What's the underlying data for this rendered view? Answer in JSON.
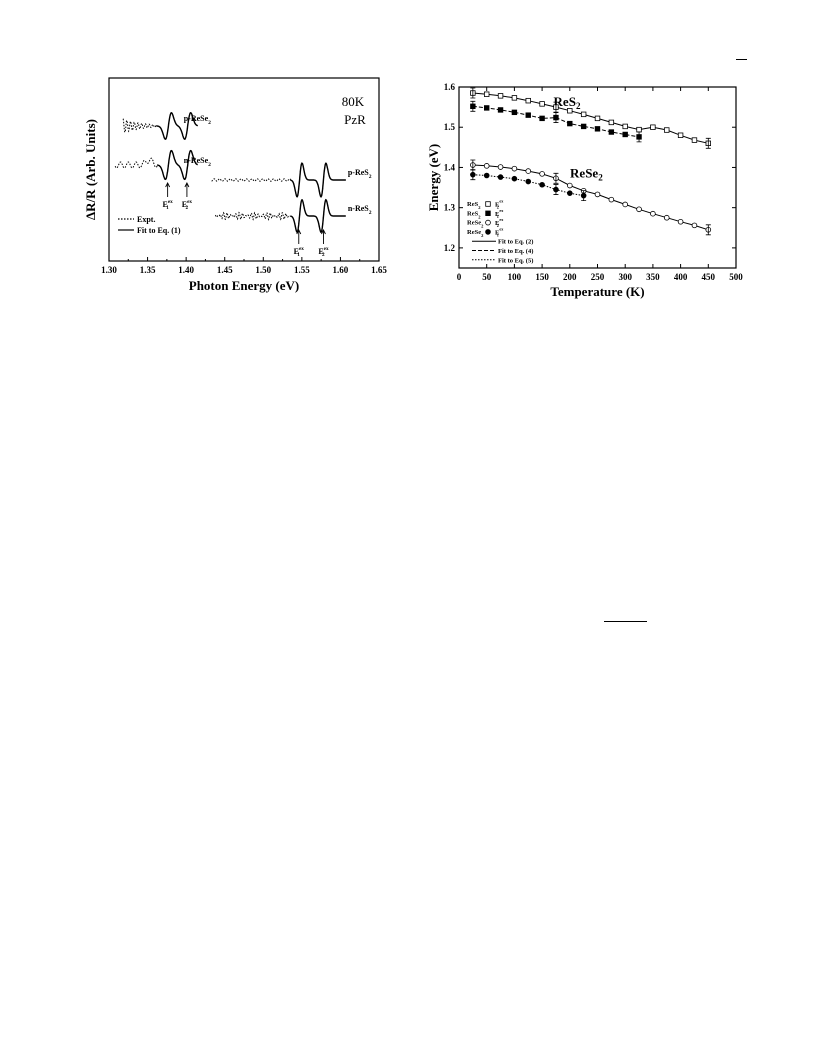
{
  "chart_data": [
    {
      "type": "line",
      "xlabel": "Photon Energy (eV)",
      "ylabel": "ΔR/R (Arb. Units)",
      "xlim": [
        1.3,
        1.65
      ],
      "xticks": [
        "1.30",
        "1.35",
        "1.40",
        "1.45",
        "1.50",
        "1.55",
        "1.60",
        "1.65"
      ],
      "annotation_temp": "80K",
      "annotation_method": "PzR",
      "traces": [
        {
          "label": "p-ReSe",
          "sub": "2",
          "peaks": [
            1.377,
            1.402
          ],
          "x_range": [
            1.318,
            1.415
          ]
        },
        {
          "label": "n-ReSe",
          "sub": "2",
          "peaks": [
            1.377,
            1.402
          ],
          "x_range": [
            1.308,
            1.415
          ]
        },
        {
          "label": "p-ReS",
          "sub": "2",
          "peaks": [
            1.547,
            1.578
          ],
          "x_range": [
            1.433,
            1.607
          ]
        },
        {
          "label": "n-ReS",
          "sub": "2",
          "peaks": [
            1.547,
            1.578
          ],
          "x_range": [
            1.438,
            1.607
          ]
        }
      ],
      "arrows": [
        {
          "label": "E",
          "sub": "1",
          "sup": "ex",
          "x": 1.376
        },
        {
          "label": "E",
          "sub": "2",
          "sup": "ex",
          "x": 1.401
        },
        {
          "label": "E",
          "sub": "1",
          "sup": "ex",
          "x": 1.546
        },
        {
          "label": "E",
          "sub": "2",
          "sup": "ex",
          "x": 1.578
        }
      ],
      "legend": [
        {
          "label": "Expt.",
          "style": "dotted"
        },
        {
          "label": "Fit to Eq. (1)",
          "style": "solid"
        }
      ],
      "legend_position": "bottom-left"
    },
    {
      "type": "scatter",
      "xlabel": "Temperature (K)",
      "ylabel": "Energy (eV)",
      "xlim": [
        0,
        500
      ],
      "ylim": [
        1.15,
        1.6
      ],
      "xticks": [
        "0",
        "50",
        "100",
        "150",
        "200",
        "250",
        "300",
        "350",
        "400",
        "450",
        "500"
      ],
      "yticks": [
        "1.2",
        "1.3",
        "1.4",
        "1.5",
        "1.6"
      ],
      "group_labels": [
        {
          "text": "ReS",
          "sub": "2"
        },
        {
          "text": "ReSe",
          "sub": "2"
        }
      ],
      "series": [
        {
          "name": "ReS2 E2ex",
          "material": "ReS",
          "sub": "2",
          "marker": "open-square",
          "fit": "solid",
          "x": [
            25,
            50,
            75,
            100,
            125,
            150,
            175,
            200,
            225,
            250,
            275,
            300,
            325,
            350,
            375,
            400,
            425,
            450
          ],
          "y": [
            1.585,
            1.582,
            1.578,
            1.573,
            1.566,
            1.558,
            1.55,
            1.541,
            1.532,
            1.522,
            1.512,
            1.502,
            1.494,
            1.5,
            1.493,
            1.48,
            1.468,
            1.46
          ]
        },
        {
          "name": "ReS2 E1ex",
          "material": "ReS",
          "sub": "2",
          "marker": "filled-square",
          "fit": "dashed",
          "x": [
            25,
            50,
            75,
            100,
            125,
            150,
            175,
            200,
            225,
            250,
            275,
            300,
            325
          ],
          "y": [
            1.552,
            1.548,
            1.543,
            1.537,
            1.53,
            1.522,
            1.524,
            1.509,
            1.502,
            1.496,
            1.488,
            1.482,
            1.476
          ]
        },
        {
          "name": "ReSe2 E2ex",
          "material": "ReSe",
          "sub": "2",
          "marker": "open-circle",
          "fit": "solid",
          "x": [
            25,
            50,
            75,
            100,
            125,
            150,
            175,
            200,
            225,
            250,
            275,
            300,
            325,
            350,
            375,
            400,
            425,
            450
          ],
          "y": [
            1.406,
            1.404,
            1.401,
            1.397,
            1.391,
            1.384,
            1.373,
            1.355,
            1.342,
            1.333,
            1.32,
            1.308,
            1.296,
            1.285,
            1.275,
            1.265,
            1.256,
            1.245
          ]
        },
        {
          "name": "ReSe2 E1ex",
          "material": "ReSe",
          "sub": "2",
          "marker": "filled-circle",
          "fit": "dotted",
          "x": [
            25,
            50,
            75,
            100,
            125,
            150,
            175,
            200,
            225
          ],
          "y": [
            1.382,
            1.38,
            1.376,
            1.372,
            1.365,
            1.357,
            1.345,
            1.336,
            1.33
          ]
        }
      ],
      "legend": [
        {
          "material": "ReS",
          "sub": "2",
          "marker": "open-square",
          "symbol": "E",
          "ssub": "2",
          "ssup": "ex"
        },
        {
          "material": "ReS",
          "sub": "2",
          "marker": "filled-square",
          "symbol": "E",
          "ssub": "1",
          "ssup": "ex"
        },
        {
          "material": "ReSe",
          "sub": "2",
          "marker": "open-circle",
          "symbol": "E",
          "ssub": "2",
          "ssup": "ex"
        },
        {
          "material": "ReSe",
          "sub": "2",
          "marker": "filled-circle",
          "symbol": "E",
          "ssub": "1",
          "ssup": "ex"
        },
        {
          "label": "Fit to Eq. (2)",
          "style": "solid"
        },
        {
          "label": "Fit to Eq. (4)",
          "style": "dashed"
        },
        {
          "label": "Fit to Eq. (5)",
          "style": "dotted"
        }
      ],
      "legend_position": "bottom-left",
      "grid": false
    }
  ]
}
